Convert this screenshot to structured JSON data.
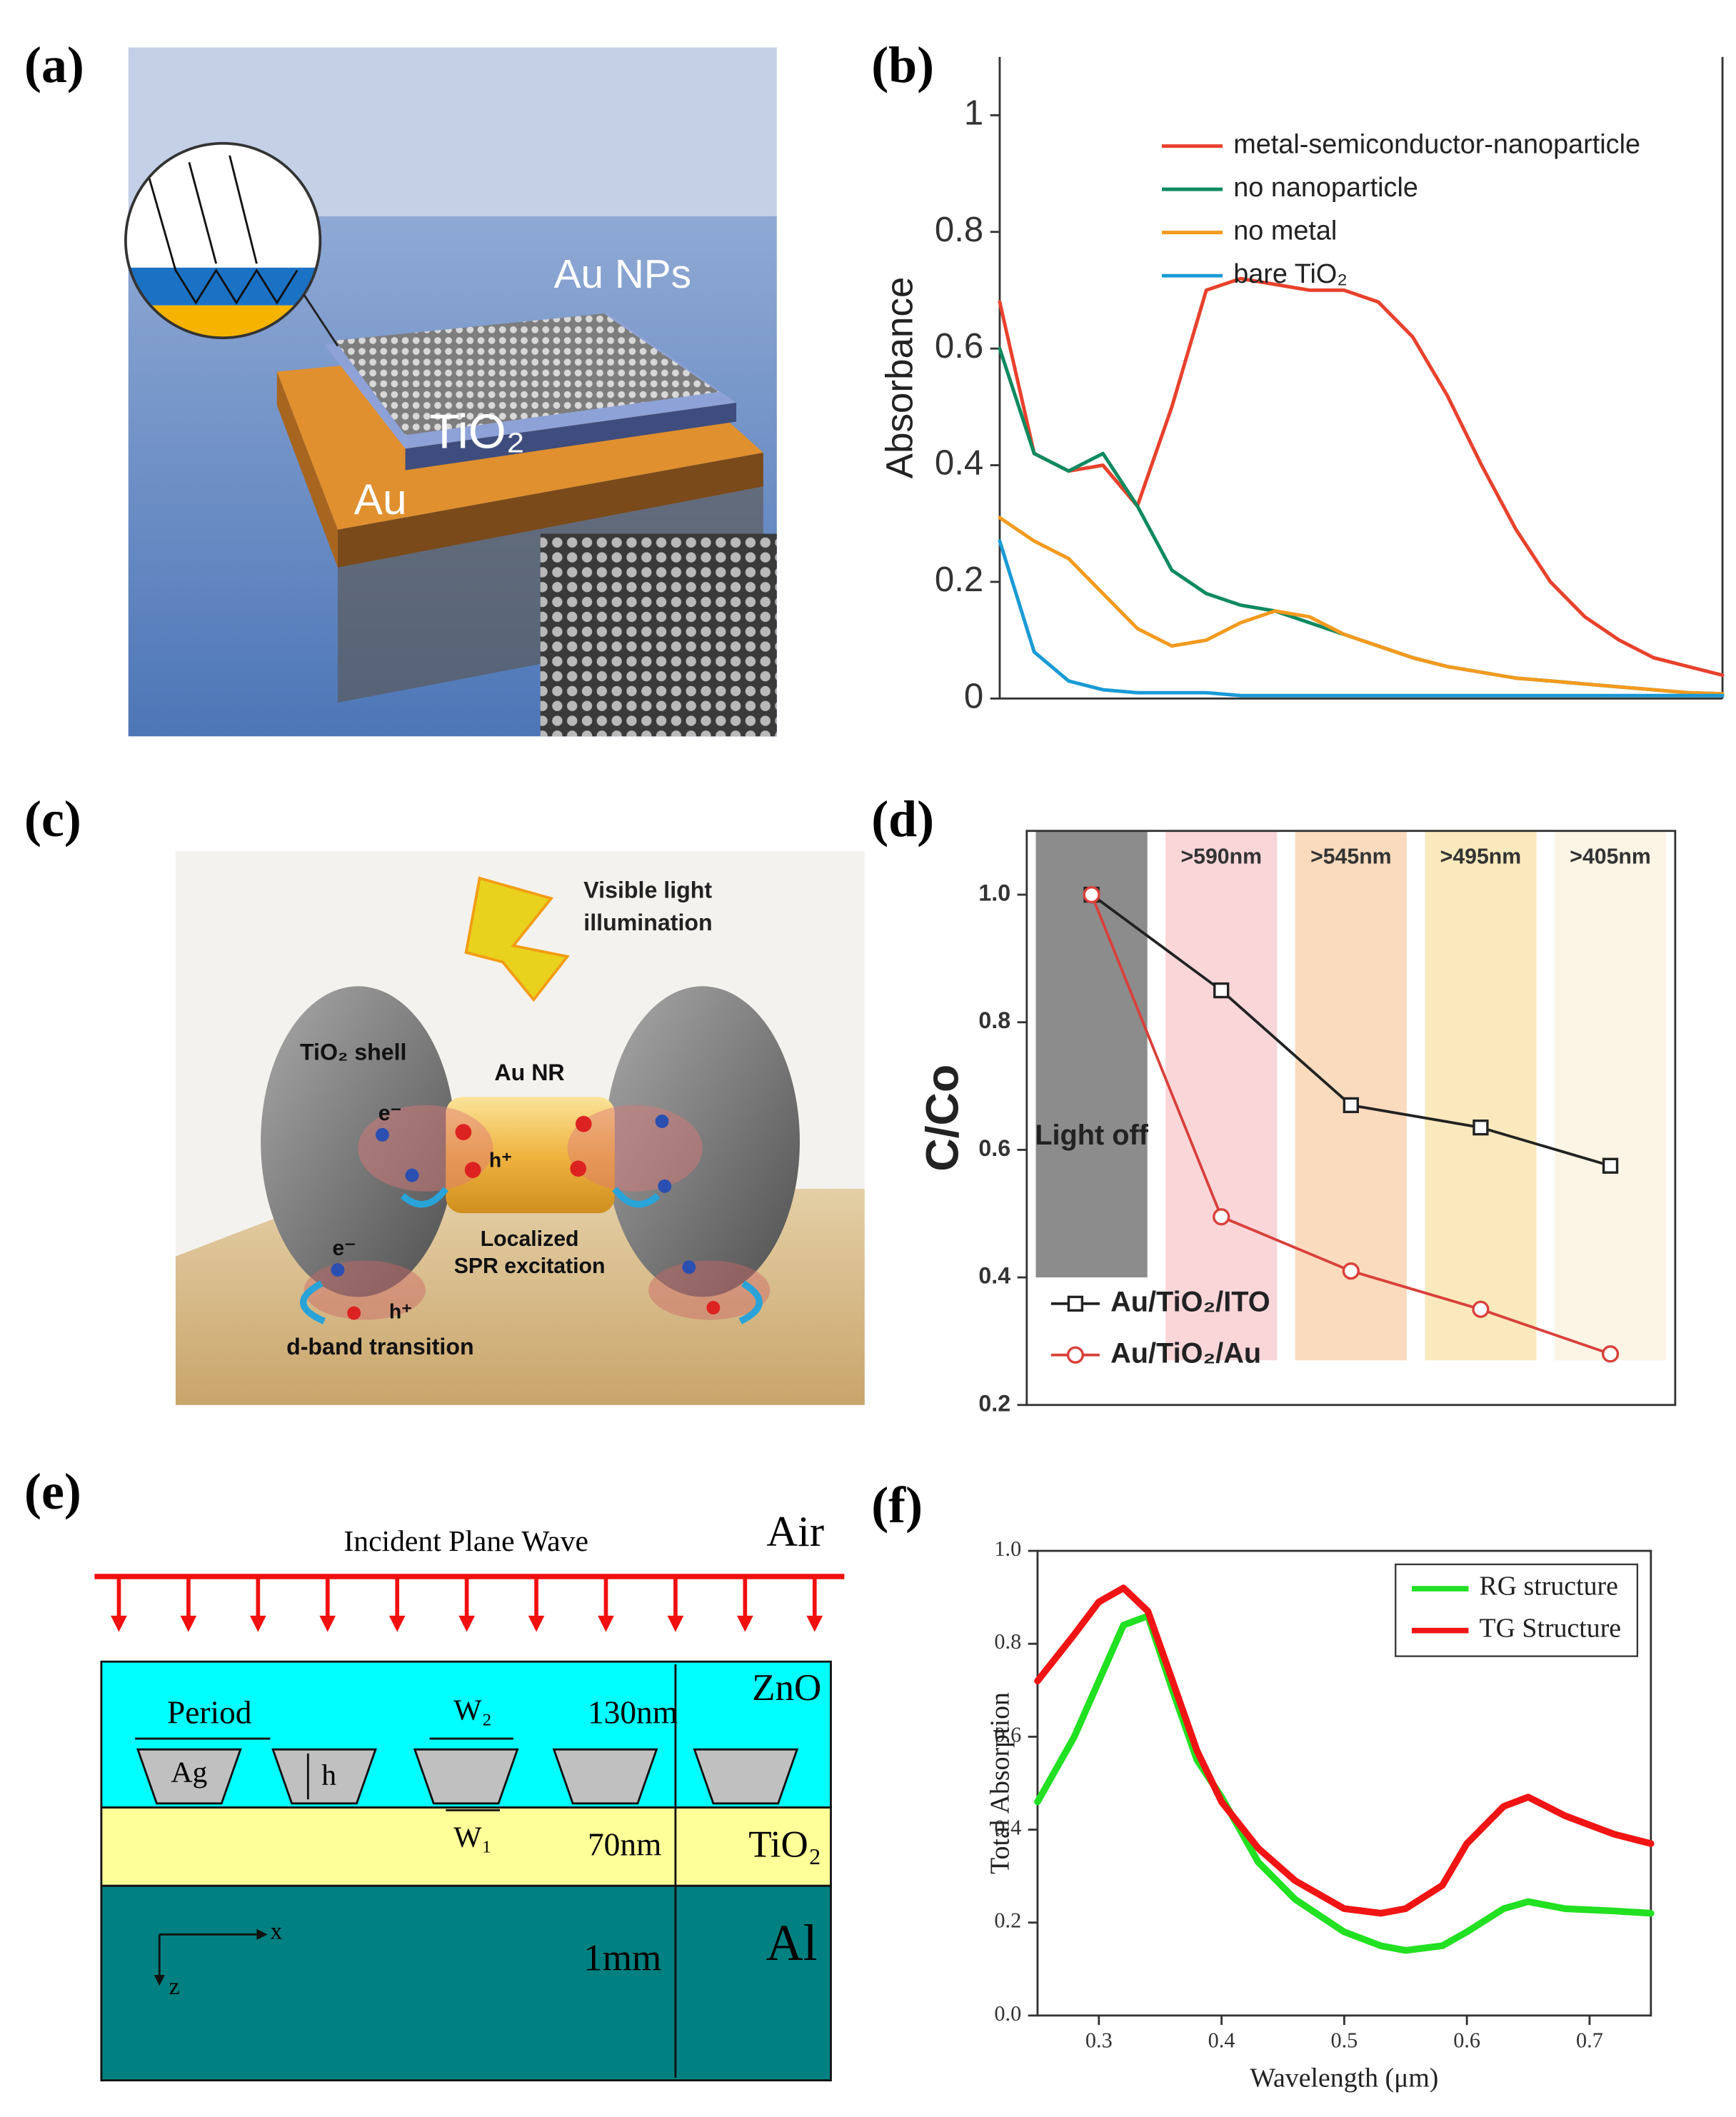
{
  "panel_labels": [
    "(a)",
    "(b)",
    "(c)",
    "(d)",
    "(e)",
    "(f)"
  ],
  "panel_a": {
    "nps_label": "Au NPs",
    "tio2_label": "TiO₂",
    "au_label": "Au"
  },
  "panel_c": {
    "illumination": [
      "Visible light",
      "illumination"
    ],
    "shell_label": "TiO₂ shell",
    "rod_label": "Au NR",
    "electron_label": "e⁻",
    "hole_label": "h⁺",
    "spr_label": [
      "Localized",
      "SPR excitation"
    ],
    "dband_label": "d-band transition"
  },
  "panel_e": {
    "wave_label": "Incident Plane Wave",
    "air": "Air",
    "period": "Period",
    "ag": "Ag",
    "h": "h",
    "w2": "W₂",
    "w1": "W₁",
    "zno_thickness": "130nm",
    "tio2_thickness": "70nm",
    "al_thickness": "1mm",
    "zno": "ZnO",
    "tio2": "TiO₂",
    "al": "Al",
    "x_axis": "x",
    "z_axis": "z"
  },
  "chart_data": [
    {
      "type": "line",
      "ylabel": "Absorbance",
      "categories": [
        null,
        null,
        null,
        null,
        null,
        null,
        null,
        null,
        null,
        null,
        null,
        null,
        null,
        null,
        null,
        null,
        null,
        null,
        null,
        null,
        null,
        null
      ],
      "ylim": [
        0,
        1.1
      ],
      "yticks": [
        0,
        0.2,
        0.4,
        0.6,
        0.8,
        1
      ],
      "legend": "upper right",
      "series": [
        {
          "name": "metal-semiconductor-nanoparticle",
          "color": "#e8412c",
          "values": [
            0.68,
            0.42,
            0.39,
            0.4,
            0.33,
            0.5,
            0.7,
            0.72,
            0.71,
            0.7,
            0.7,
            0.68,
            0.62,
            0.52,
            0.4,
            0.29,
            0.2,
            0.14,
            0.1,
            0.07,
            0.055,
            0.04
          ]
        },
        {
          "name": "no nanoparticle",
          "color": "#0f8a5f",
          "values": [
            0.6,
            0.42,
            0.39,
            0.42,
            0.33,
            0.22,
            0.18,
            0.16,
            0.15,
            0.13,
            0.11,
            0.09,
            0.07,
            0.055,
            0.045,
            0.035,
            0.03,
            0.025,
            0.02,
            0.015,
            0.01,
            0.008
          ]
        },
        {
          "name": "no metal",
          "color": "#f39a1e",
          "values": [
            0.31,
            0.27,
            0.24,
            0.18,
            0.12,
            0.09,
            0.1,
            0.13,
            0.15,
            0.14,
            0.11,
            0.09,
            0.07,
            0.055,
            0.045,
            0.035,
            0.03,
            0.025,
            0.02,
            0.015,
            0.01,
            0.008
          ]
        },
        {
          "name": "bare TiO₂",
          "color": "#1a9ad6",
          "values": [
            0.27,
            0.08,
            0.03,
            0.015,
            0.01,
            0.01,
            0.01,
            0.005,
            0.005,
            0.005,
            0.005,
            0.005,
            0.005,
            0.005,
            0.005,
            0.005,
            0.005,
            0.005,
            0.005,
            0.005,
            0.005,
            0.005
          ]
        }
      ]
    },
    {
      "type": "line",
      "ylabel": "C/Co",
      "categories": [
        "Light off",
        ">590nm",
        ">545nm",
        ">495nm",
        ">405nm"
      ],
      "band_colors": [
        "#8c8c8c",
        "#f8c8cc",
        "#f9cfa8",
        "#f8e2a6",
        "#fbf0dc"
      ],
      "ylim": [
        0.2,
        1.1
      ],
      "yticks": [
        0.2,
        0.4,
        0.6,
        0.8,
        {
          "value": 1,
          "label": "1.0"
        }
      ],
      "legend": "lower left",
      "series": [
        {
          "name": "Au/TiO₂/ITO",
          "color": "#222222",
          "marker": "square",
          "values": [
            1.0,
            0.85,
            0.67,
            0.635,
            0.575
          ]
        },
        {
          "name": "Au/TiO₂/Au",
          "color": "#d9403a",
          "marker": "circle",
          "values": [
            1.0,
            0.495,
            0.41,
            0.35,
            0.28
          ]
        }
      ]
    },
    {
      "type": "line",
      "xlabel": "Wavelength (μm)",
      "ylabel": "Total Absorption",
      "x": [
        0.25,
        0.28,
        0.3,
        0.32,
        0.34,
        0.36,
        0.38,
        0.4,
        0.43,
        0.46,
        0.5,
        0.53,
        0.55,
        0.58,
        0.6,
        0.63,
        0.65,
        0.68,
        0.72,
        0.75
      ],
      "xlim": [
        0.25,
        0.75
      ],
      "xticks": [
        0.3,
        0.4,
        0.5,
        0.6,
        0.7
      ],
      "ylim": [
        0,
        1
      ],
      "yticks": [
        {
          "value": 0,
          "label": "0.0"
        },
        0.2,
        0.4,
        0.6,
        0.8,
        {
          "value": 1,
          "label": "1.0"
        }
      ],
      "legend": "upper right",
      "series": [
        {
          "name": "RG structure",
          "color": "#22e022",
          "values": [
            0.46,
            0.6,
            0.72,
            0.84,
            0.86,
            0.7,
            0.55,
            0.47,
            0.33,
            0.25,
            0.18,
            0.15,
            0.14,
            0.15,
            0.18,
            0.23,
            0.245,
            0.23,
            0.225,
            0.22
          ]
        },
        {
          "name": "TG Structure",
          "color": "#f01414",
          "values": [
            0.72,
            0.82,
            0.89,
            0.92,
            0.87,
            0.72,
            0.57,
            0.46,
            0.36,
            0.29,
            0.23,
            0.22,
            0.23,
            0.28,
            0.37,
            0.45,
            0.47,
            0.43,
            0.39,
            0.37
          ]
        }
      ]
    }
  ]
}
